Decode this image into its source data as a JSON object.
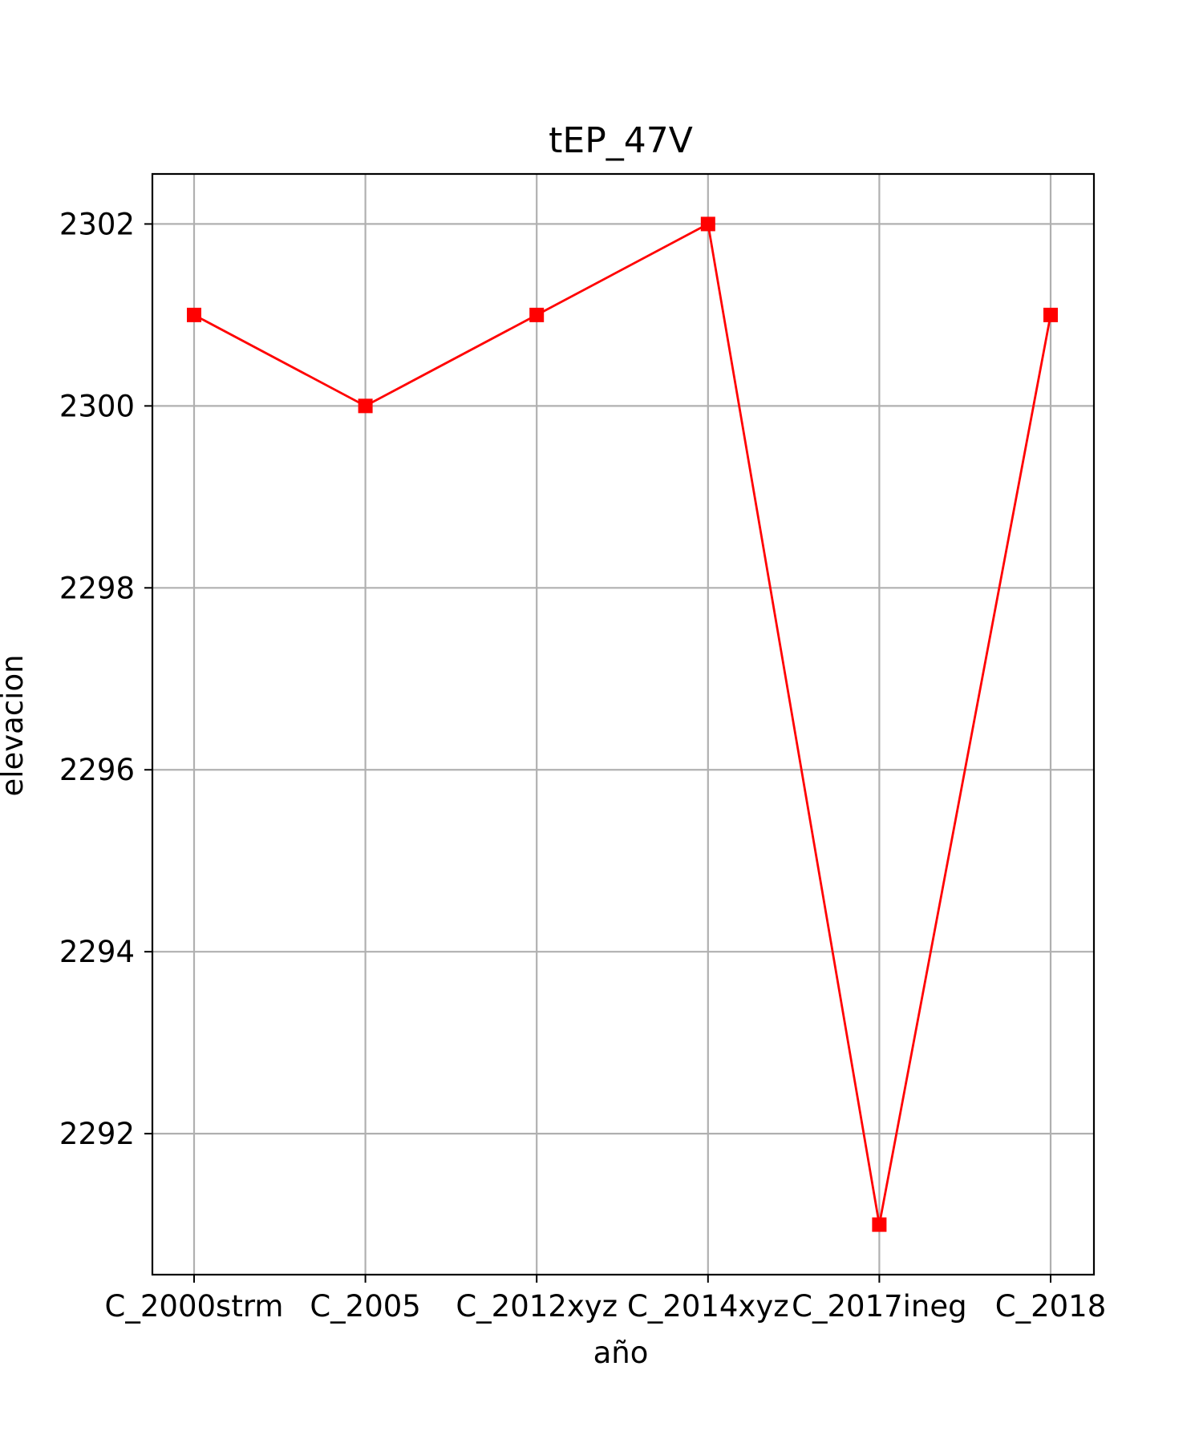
{
  "chart_data": {
    "type": "line",
    "title": "tEP_47V",
    "xlabel": "año",
    "ylabel": "elevacion",
    "categories": [
      "C_2000strm",
      "C_2005",
      "C_2012xyz",
      "C_2014xyz",
      "C_2017ineg",
      "C_2018"
    ],
    "series": [
      {
        "values": [
          2301,
          2300,
          2301,
          2302,
          2291,
          2301
        ],
        "color": "#ff0000",
        "marker": "square"
      }
    ],
    "yticks": [
      2292,
      2294,
      2296,
      2298,
      2300,
      2302
    ],
    "ylim": [
      2290.45,
      2302.55
    ],
    "grid": true,
    "legend": "none"
  }
}
